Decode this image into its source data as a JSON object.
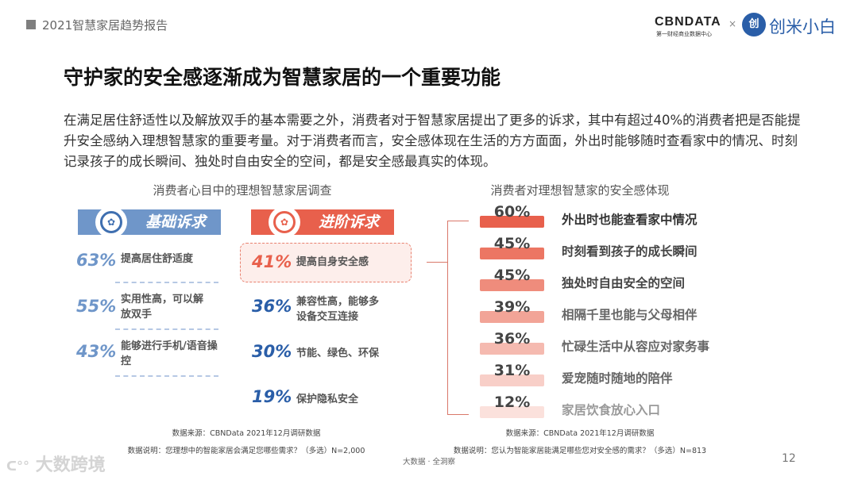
{
  "header": {
    "report_title": "2021智慧家居趋势报告",
    "logo_cbn": "CBNDATA",
    "logo_cbn_sub": "第一财经商业数据中心",
    "logo_separator": "×",
    "logo_partner": "创米小白",
    "logo_partner_mark": "创"
  },
  "title": "守护家的安全感逐渐成为智慧家居的一个重要功能",
  "paragraph": "在满足居住舒适性以及解放双手的基本需要之外，消费者对于智慧家居提出了更多的诉求，其中有超过40%的消费者把是否能提升安全感纳入理想智慧家的重要考量。对于消费者而言，安全感体现在生活的方方面面，外出时能够随时查看家中的情况、时刻记录孩子的成长瞬间、独处时自由安全的空间，都是安全感最真实的体现。",
  "left_section": {
    "title": "消费者心目中的理想智慧家居调查",
    "basic": {
      "label": "基础诉求",
      "color": "#6f96c9",
      "items": [
        {
          "pct": "63%",
          "text": "提高居住舒适度"
        },
        {
          "pct": "55%",
          "text": "实用性高，可以解放双手"
        },
        {
          "pct": "43%",
          "text": "能够进行手机/语音操控"
        }
      ]
    },
    "advanced": {
      "label": "进阶诉求",
      "color": "#e8604c",
      "items": [
        {
          "pct": "41%",
          "text": "提高自身安全感",
          "highlight": true
        },
        {
          "pct": "36%",
          "text": "兼容性高，能够多设备交互连接"
        },
        {
          "pct": "30%",
          "text": "节能、绿色、环保"
        },
        {
          "pct": "19%",
          "text": "保护隐私安全"
        }
      ]
    },
    "source": "数据来源：CBNData 2021年12月调研数据",
    "note": "数据说明：您理想中的智能家居会满足您哪些需求？（多选）N=2,000"
  },
  "right_section": {
    "title": "消费者对理想智慧家的安全感体现",
    "items": [
      {
        "pct": "60%",
        "value": 60,
        "text": "外出时也能查看家中情况",
        "color": "#e8604c"
      },
      {
        "pct": "45%",
        "value": 45,
        "text": "时刻看到孩子的成长瞬间",
        "color": "#ec7663"
      },
      {
        "pct": "45%",
        "value": 45,
        "text": "独处时自由安全的空间",
        "color": "#ef8c7c"
      },
      {
        "pct": "39%",
        "value": 39,
        "text": "相隔千里也能与父母相伴",
        "color": "#f2a497"
      },
      {
        "pct": "36%",
        "value": 36,
        "text": "忙碌生活中从容应对家务事",
        "color": "#f5bab0"
      },
      {
        "pct": "31%",
        "value": 31,
        "text": "爱宠随时随地的陪伴",
        "color": "#f8cfc8"
      },
      {
        "pct": "12%",
        "value": 12,
        "text": "家居饮食放心入口",
        "color": "#fbe1dc"
      }
    ],
    "source": "数据来源：CBNData 2021年12月调研数据",
    "note": "数据说明：您认为智能家居能满足哪些您对安全感的需求？（多选）N=813"
  },
  "footer": {
    "tagline": "大数据 · 全洞察",
    "page": "12",
    "watermark": "大数跨境"
  }
}
